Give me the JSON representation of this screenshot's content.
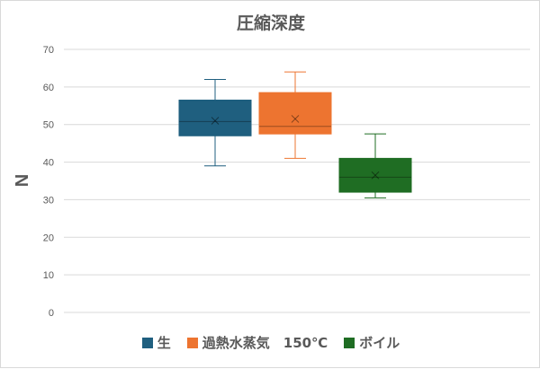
{
  "chart_data": {
    "type": "box",
    "title": "圧縮深度",
    "ylabel": "N",
    "xlabel": "",
    "ylim": [
      0,
      70
    ],
    "yticks": [
      0,
      10,
      20,
      30,
      40,
      50,
      60,
      70
    ],
    "grid": true,
    "legend_position": "bottom",
    "series": [
      {
        "name": "生",
        "color": "#1f5f7f",
        "min": 39,
        "q1": 47,
        "median": 50.8,
        "mean": 51,
        "q3": 56.5,
        "max": 62
      },
      {
        "name": "過熱水蒸気　150℃",
        "color": "#ed7430",
        "min": 41,
        "q1": 47.5,
        "median": 49.5,
        "mean": 51.5,
        "q3": 58.5,
        "max": 64
      },
      {
        "name": "ボイル",
        "color": "#1f6d23",
        "min": 30.5,
        "q1": 32,
        "median": 36,
        "mean": 36.5,
        "q3": 41,
        "max": 47.5
      }
    ]
  }
}
